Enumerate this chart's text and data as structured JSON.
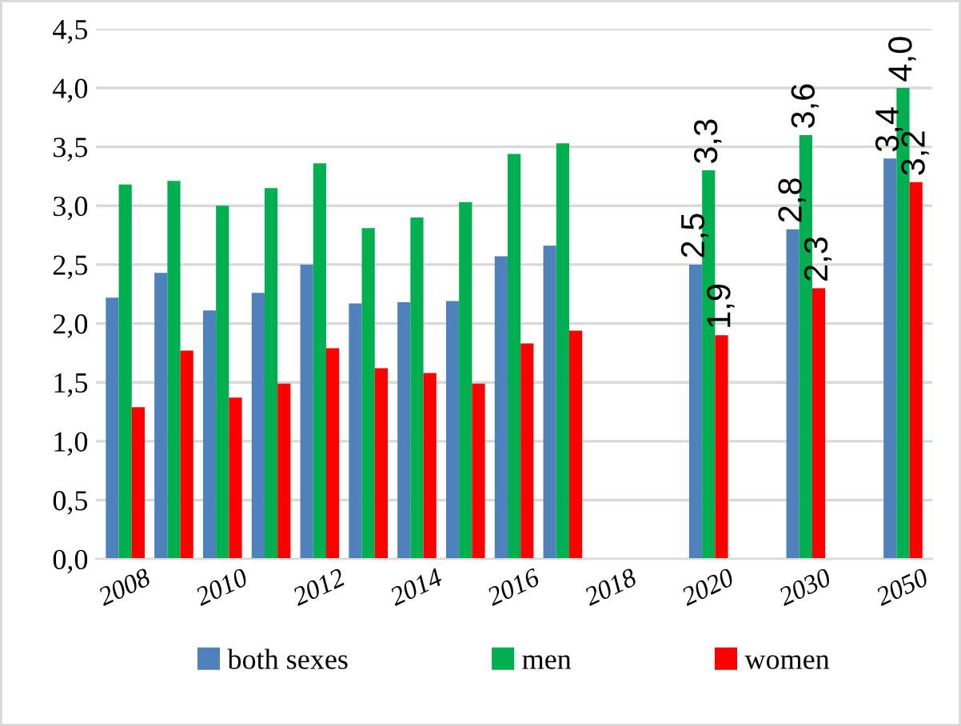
{
  "chart_data": {
    "type": "bar",
    "categories": [
      "2008",
      null,
      "2010",
      null,
      "2012",
      null,
      "2014",
      null,
      "2016",
      null,
      "2018",
      null,
      "2020",
      null,
      "2030",
      null,
      "2050"
    ],
    "series": [
      {
        "name": "both sexes",
        "color": "#4f81bd",
        "values": [
          2.22,
          2.43,
          2.11,
          2.26,
          2.5,
          2.17,
          2.18,
          2.19,
          2.57,
          2.66,
          null,
          null,
          2.5,
          null,
          2.8,
          null,
          3.4
        ],
        "value_labels": [
          null,
          null,
          null,
          null,
          null,
          null,
          null,
          null,
          null,
          null,
          null,
          null,
          "2,5",
          null,
          "2,8",
          null,
          "3,4"
        ]
      },
      {
        "name": "men",
        "color": "#00b050",
        "values": [
          3.18,
          3.21,
          3.0,
          3.15,
          3.36,
          2.81,
          2.9,
          3.03,
          3.44,
          3.53,
          null,
          null,
          3.3,
          null,
          3.6,
          null,
          4.0
        ],
        "value_labels": [
          null,
          null,
          null,
          null,
          null,
          null,
          null,
          null,
          null,
          null,
          null,
          null,
          "3,3",
          null,
          "3,6",
          null,
          "4,0"
        ]
      },
      {
        "name": "women",
        "color": "#ff0000",
        "values": [
          1.29,
          1.77,
          1.37,
          1.49,
          1.79,
          1.62,
          1.58,
          1.49,
          1.83,
          1.94,
          null,
          null,
          1.9,
          null,
          2.3,
          null,
          3.2
        ],
        "value_labels": [
          null,
          null,
          null,
          null,
          null,
          null,
          null,
          null,
          null,
          null,
          null,
          null,
          "1,9",
          null,
          "2,3",
          null,
          "3,2"
        ]
      }
    ],
    "ylim": [
      0,
      4.5
    ],
    "yticks": [
      {
        "value": 0,
        "label": "0,0"
      },
      {
        "value": 0.5,
        "label": "0,5"
      },
      {
        "value": 1,
        "label": "1,0"
      },
      {
        "value": 1.5,
        "label": "1,5"
      },
      {
        "value": 2,
        "label": "2,0"
      },
      {
        "value": 2.5,
        "label": "2,5"
      },
      {
        "value": 3,
        "label": "3,0"
      },
      {
        "value": 3.5,
        "label": "3,5"
      },
      {
        "value": 4,
        "label": "4,0"
      },
      {
        "value": 4.5,
        "label": "4,5"
      }
    ],
    "grid": "y",
    "legend": "bottom"
  }
}
